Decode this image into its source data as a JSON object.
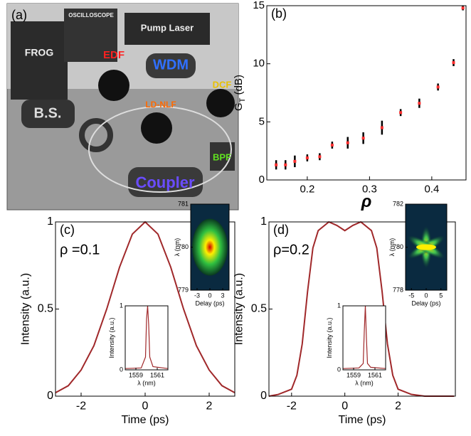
{
  "setup": {
    "label": "(a)",
    "components": [
      "FROG",
      "OSCILLOSCOPE",
      "Pump Laser",
      "EDF",
      "WDM",
      "DCF",
      "LD-NLF",
      "B.S.",
      "BPF",
      "Coupler"
    ]
  },
  "chart_data": [
    {
      "type": "scatter",
      "title": "(b)",
      "xlabel": "ρ",
      "ylabel": "G",
      "ylabel_subscript": "T",
      "ylabel_unit": " (dB)",
      "x": [
        0.15,
        0.165,
        0.18,
        0.2,
        0.22,
        0.24,
        0.265,
        0.29,
        0.32,
        0.35,
        0.38,
        0.41,
        0.435,
        0.45
      ],
      "values": [
        1.3,
        1.3,
        1.6,
        1.9,
        2.0,
        3.0,
        3.2,
        3.6,
        4.5,
        5.8,
        6.6,
        8.0,
        10.1,
        14.8
      ],
      "yerr": [
        0.4,
        0.4,
        0.5,
        0.3,
        0.3,
        0.3,
        0.5,
        0.5,
        0.6,
        0.3,
        0.4,
        0.3,
        0.3,
        0.2
      ],
      "color": "#ff3030",
      "xlim": [
        0.135,
        0.455
      ],
      "ylim": [
        0,
        15
      ],
      "xticks": [
        0.2,
        0.3,
        0.4
      ],
      "yticks": [
        0,
        5,
        10,
        15
      ]
    },
    {
      "type": "line",
      "title": "(c)",
      "annotation": "ρ =0.1",
      "xlabel": "Time (ps)",
      "ylabel": "Intensity (a.u.)",
      "x": [
        -2.8,
        -2.4,
        -2,
        -1.6,
        -1.2,
        -0.8,
        -0.4,
        0,
        0.4,
        0.8,
        1.2,
        1.6,
        2,
        2.4,
        2.8
      ],
      "values": [
        0.02,
        0.06,
        0.15,
        0.29,
        0.5,
        0.74,
        0.93,
        1,
        0.93,
        0.74,
        0.5,
        0.29,
        0.15,
        0.06,
        0.02
      ],
      "color": "#a0282a",
      "xlim": [
        -2.8,
        2.8
      ],
      "ylim": [
        0,
        1
      ],
      "xticks": [
        -2,
        0,
        2
      ],
      "yticks": [
        0,
        0.5,
        1
      ]
    },
    {
      "type": "line",
      "xlabel": "λ (nm)",
      "ylabel": "Intensity (a.u.)",
      "x": [
        1558,
        1559.5,
        1559.9,
        1560.0,
        1560.1,
        1560.2,
        1560.3,
        1560.6,
        1562
      ],
      "values": [
        0.02,
        0.03,
        0.2,
        0.8,
        1,
        0.7,
        0.2,
        0.05,
        0.02
      ],
      "color": "#a0282a",
      "xlim": [
        1558,
        1562
      ],
      "ylim": [
        0,
        1
      ],
      "xticks": [
        1559,
        1561
      ],
      "yticks": [
        0,
        1
      ]
    },
    {
      "type": "spectrogram",
      "xlabel": "Delay (ps)",
      "ylabel": "λ (nm)",
      "xlim": [
        -4.5,
        4.5
      ],
      "ylim": [
        779,
        781
      ],
      "xticks": [
        -3,
        0,
        3
      ],
      "yticks": [
        779,
        780,
        781
      ]
    },
    {
      "type": "line",
      "title": "(d)",
      "annotation": "ρ=0.2",
      "xlabel": "Time (ps)",
      "ylabel": "Intensity (a.u.)",
      "x": [
        -2.85,
        -2.5,
        -2,
        -1.8,
        -1.6,
        -1.4,
        -1.2,
        -1,
        -0.6,
        -0.3,
        0,
        0.3,
        0.6,
        1,
        1.2,
        1.4,
        1.6,
        1.8,
        2,
        2.5,
        3,
        4.1
      ],
      "values": [
        0,
        0.01,
        0.04,
        0.12,
        0.3,
        0.6,
        0.85,
        0.95,
        1,
        0.98,
        0.95,
        0.98,
        1,
        0.95,
        0.85,
        0.6,
        0.3,
        0.12,
        0.04,
        0.01,
        0,
        0
      ],
      "color": "#a0282a",
      "xlim": [
        -2.85,
        4.15
      ],
      "ylim": [
        0,
        1
      ],
      "xticks": [
        -2,
        0,
        2
      ],
      "yticks": [
        0,
        0.5,
        1
      ]
    },
    {
      "type": "line",
      "xlabel": "λ (nm)",
      "ylabel": "Intensity (a.u.)",
      "x": [
        1558,
        1559.5,
        1559.9,
        1560.0,
        1560.1,
        1560.2,
        1560.3,
        1560.6,
        1562
      ],
      "values": [
        0.02,
        0.03,
        0.1,
        0.6,
        1,
        0.5,
        0.1,
        0.04,
        0.02
      ],
      "color": "#a0282a",
      "xlim": [
        1558,
        1562
      ],
      "ylim": [
        0,
        1
      ],
      "xticks": [
        1559,
        1561
      ],
      "yticks": [
        0,
        1
      ]
    },
    {
      "type": "spectrogram",
      "xlabel": "Delay (ps)",
      "ylabel": "λ (nm)",
      "xlim": [
        -7,
        7
      ],
      "ylim": [
        778,
        782
      ],
      "xticks": [
        -5,
        0,
        5
      ],
      "yticks": [
        778,
        780,
        782
      ]
    }
  ]
}
